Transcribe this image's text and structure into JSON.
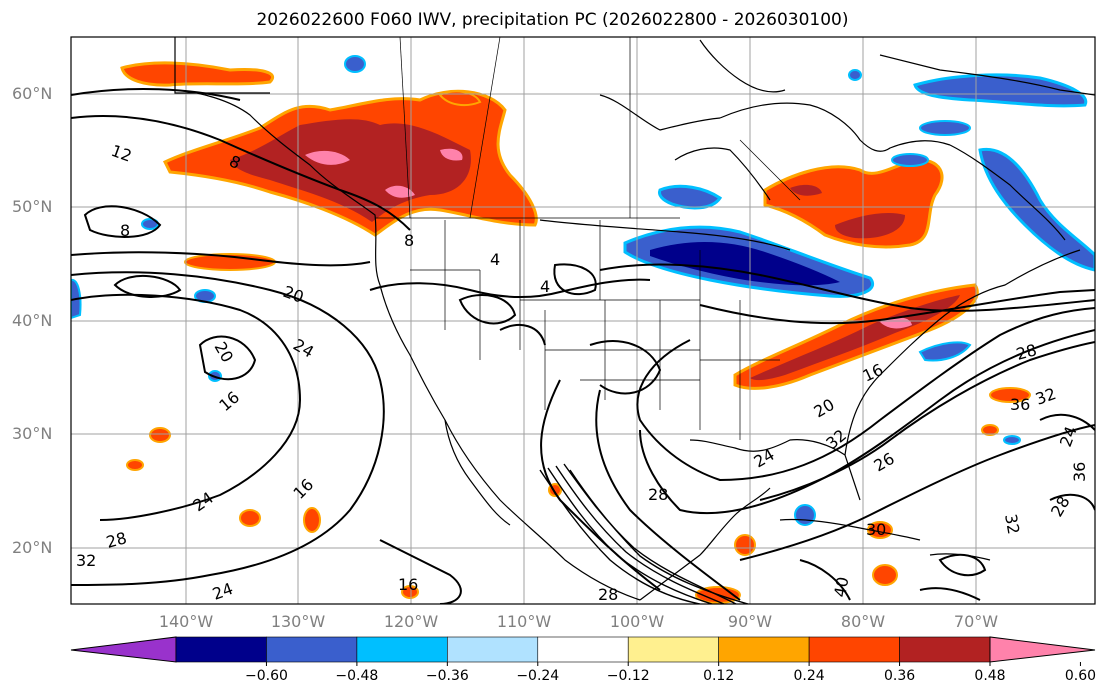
{
  "title": "2026022600 F060 IWV, precipitation PC (2026022800 - 2026030100)",
  "lat_labels": [
    "60°N",
    "50°N",
    "40°N",
    "30°N",
    "20°N"
  ],
  "lon_labels": [
    "140°W",
    "130°W",
    "120°W",
    "110°W",
    "100°W",
    "90°W",
    "80°W",
    "70°W"
  ],
  "colorbar": {
    "ticks": [
      "−0.60",
      "−0.48",
      "−0.36",
      "−0.24",
      "−0.12",
      "0.12",
      "0.24",
      "0.36",
      "0.48",
      "0.60"
    ],
    "colors": [
      "#9932cc",
      "#00008b",
      "#3a5fcd",
      "#00bfff",
      "#b0e2ff",
      "#ffffff",
      "#fff08f",
      "#ffa500",
      "#ff4500",
      "#b22222",
      "#ff82ab"
    ]
  },
  "contour_labels": [
    "12",
    "8",
    "8",
    "20",
    "24",
    "20",
    "16",
    "24",
    "16",
    "28",
    "32",
    "16",
    "4",
    "4",
    "28",
    "28",
    "8",
    "20",
    "16",
    "28",
    "24",
    "32",
    "26",
    "36",
    "32",
    "24",
    "30",
    "40",
    "28",
    "36",
    "32",
    "24"
  ]
}
